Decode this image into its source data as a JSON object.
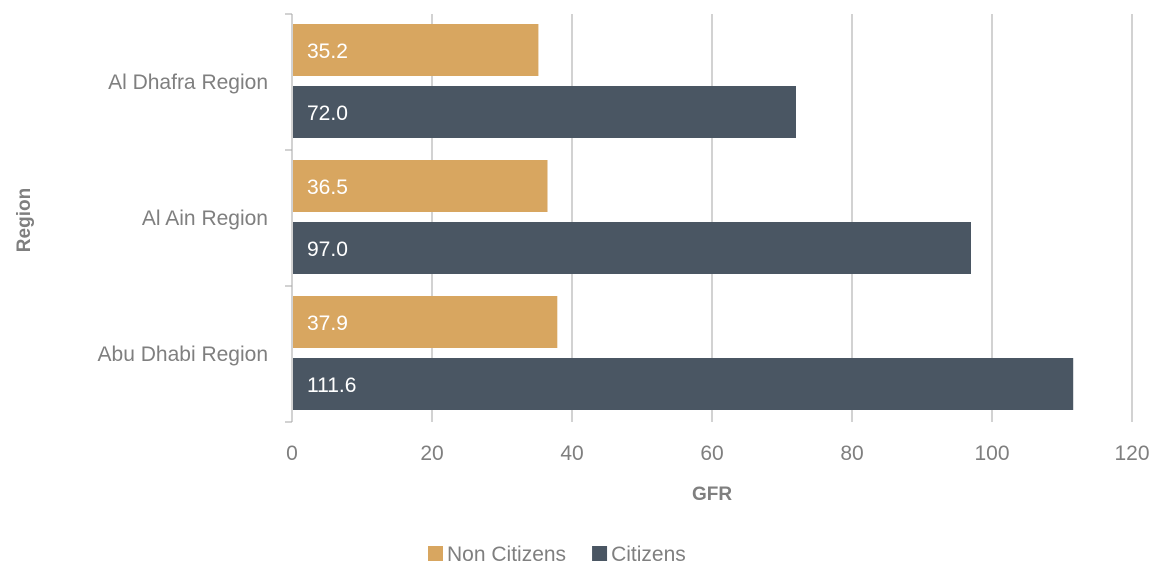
{
  "chart_data": {
    "type": "bar",
    "orientation": "horizontal",
    "title": "",
    "xlabel": "GFR",
    "ylabel": "Region",
    "xlim": [
      0,
      120
    ],
    "x_ticks": [
      "0",
      "20",
      "40",
      "60",
      "80",
      "100",
      "120"
    ],
    "grid": "vertical",
    "legend_position": "bottom",
    "categories": [
      "Al Dhafra Region",
      "Al Ain Region",
      "Abu Dhabi Region"
    ],
    "series": [
      {
        "name": "Non Citizens",
        "color": "#D8A660",
        "values": [
          35.2,
          36.5,
          37.9
        ],
        "labels": [
          "35.2",
          "36.5",
          "37.9"
        ]
      },
      {
        "name": "Citizens",
        "color": "#4A5663",
        "values": [
          72.0,
          97.0,
          111.6
        ],
        "labels": [
          "72.0",
          "97.0",
          "111.6"
        ]
      }
    ]
  }
}
